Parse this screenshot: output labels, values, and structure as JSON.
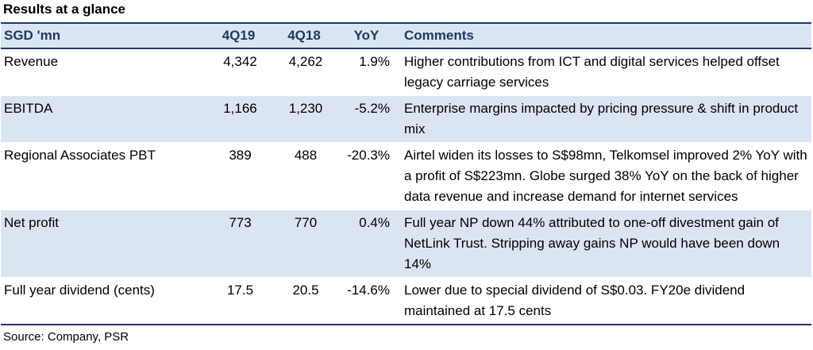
{
  "title": "Results at a glance",
  "header": {
    "label": "SGD 'mn",
    "col1": "4Q19",
    "col2": "4Q18",
    "col3": "YoY",
    "col4": "Comments"
  },
  "rows": [
    {
      "label": "Revenue",
      "q19": "4,342",
      "q18": "4,262",
      "yoy": "1.9%",
      "comment": "Higher contributions from ICT and digital services helped offset legacy carriage services"
    },
    {
      "label": "EBITDA",
      "q19": "1,166",
      "q18": "1,230",
      "yoy": "-5.2%",
      "comment": "Enterprise margins impacted by pricing pressure & shift in product mix"
    },
    {
      "label": "Regional Associates PBT",
      "q19": "389",
      "q18": "488",
      "yoy": "-20.3%",
      "comment": "Airtel widen its losses to S$98mn, Telkomsel improved 2% YoY with a profit of S$223mn. Globe surged 38% YoY on the back of higher data revenue and increase demand for internet services"
    },
    {
      "label": "Net profit",
      "q19": "773",
      "q18": "770",
      "yoy": "0.4%",
      "comment": "Full year NP down 44% attributed to one-off divestment gain of NetLink Trust. Stripping away gains NP would have been down 14%"
    },
    {
      "label": "Full year dividend (cents)",
      "q19": "17.5",
      "q18": "20.5",
      "yoy": "-14.6%",
      "comment": "Lower due to special dividend of S$0.03. FY20e dividend maintained at 17.5 cents"
    }
  ],
  "source": "Source: Company, PSR",
  "colors": {
    "header_bg": "#dbe5f1",
    "header_text": "#1f3864",
    "row_shade": "#dbe5f1"
  }
}
